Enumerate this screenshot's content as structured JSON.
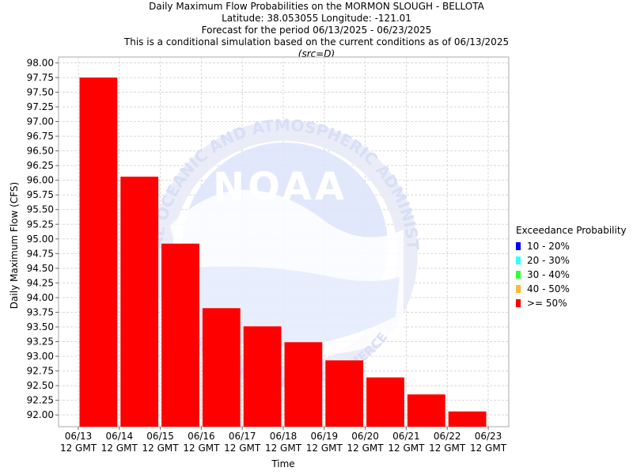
{
  "header": {
    "title": "Daily Maximum Flow Probabilities on the MORMON SLOUGH - BELLOTA",
    "location": "Latitude: 38.053055 Longitude: -121.01",
    "period": "Forecast for the period 06/13/2025 - 06/23/2025",
    "note": "This is a conditional simulation based on the current conditions as of 06/13/2025",
    "source": "(src=D)"
  },
  "watermark": {
    "logo_text": "NOAA",
    "ring_text_top": "NATIONAL OCEANIC AND ATMOSPHERIC ADMINISTRATION",
    "ring_text_bottom": "U.S. DEPARTMENT OF COMMERCE"
  },
  "legend": {
    "title": "Exceedance Probability",
    "items": [
      {
        "label": "10 - 20%",
        "color": "#0000ff"
      },
      {
        "label": "20 - 30%",
        "color": "#33ffff"
      },
      {
        "label": "30 - 40%",
        "color": "#33ff33"
      },
      {
        "label": "40 - 50%",
        "color": "#ffbb33"
      },
      {
        "label": ">= 50%",
        "color": "#ff0000"
      }
    ]
  },
  "chart_data": {
    "type": "bar",
    "xlabel": "Time",
    "ylabel": "Daily Maximum Flow (CFS)",
    "ylim": [
      91.8,
      98.1
    ],
    "yticks": [
      "92.00",
      "92.25",
      "92.50",
      "92.75",
      "93.00",
      "93.25",
      "93.50",
      "93.75",
      "94.00",
      "94.25",
      "94.50",
      "94.75",
      "95.00",
      "95.25",
      "95.50",
      "95.75",
      "96.00",
      "96.25",
      "96.50",
      "96.75",
      "97.00",
      "97.25",
      "97.50",
      "97.75",
      "98.00"
    ],
    "xticks": [
      {
        "date": "06/13",
        "time": "12 GMT"
      },
      {
        "date": "06/14",
        "time": "12 GMT"
      },
      {
        "date": "06/15",
        "time": "12 GMT"
      },
      {
        "date": "06/16",
        "time": "12 GMT"
      },
      {
        "date": "06/17",
        "time": "12 GMT"
      },
      {
        "date": "06/18",
        "time": "12 GMT"
      },
      {
        "date": "06/19",
        "time": "12 GMT"
      },
      {
        "date": "06/20",
        "time": "12 GMT"
      },
      {
        "date": "06/21",
        "time": "12 GMT"
      },
      {
        "date": "06/22",
        "time": "12 GMT"
      },
      {
        "date": "06/23",
        "time": "12 GMT"
      }
    ],
    "grid": true,
    "legend_position": "right",
    "series": [
      {
        "name": ">= 50%",
        "color": "#ff0000",
        "categories": [
          "06/13-06/14",
          "06/14-06/15",
          "06/15-06/16",
          "06/16-06/17",
          "06/17-06/18",
          "06/18-06/19",
          "06/19-06/20",
          "06/20-06/21",
          "06/21-06/22",
          "06/22-06/23"
        ],
        "values": [
          97.75,
          96.06,
          94.92,
          93.82,
          93.51,
          93.24,
          92.93,
          92.64,
          92.35,
          92.06
        ]
      }
    ]
  }
}
